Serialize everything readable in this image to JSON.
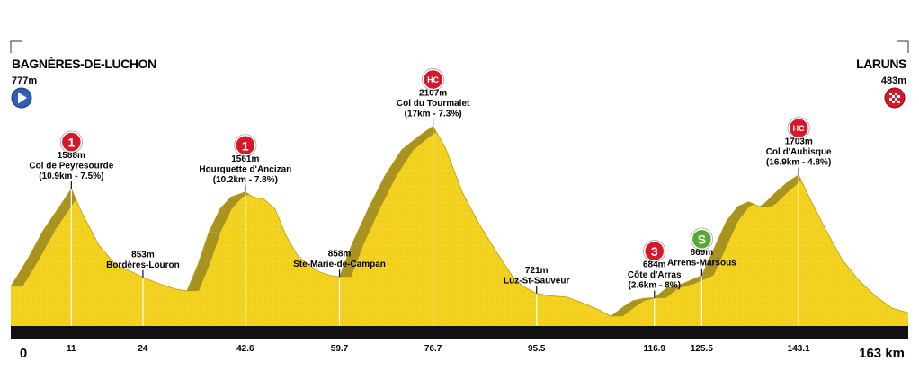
{
  "chart_data": {
    "type": "area",
    "start": {
      "name": "BAGNÈRES-DE-LUCHON",
      "altitude": "777m"
    },
    "finish": {
      "name": "LARUNS",
      "altitude": "483m"
    },
    "x_axis": {
      "ticks": [
        0,
        11,
        24,
        42.6,
        59.7,
        76.7,
        95.5,
        116.9,
        125.5,
        143.1
      ],
      "tick_labels": [
        "0",
        "11",
        "24",
        "42.6",
        "59.7",
        "76.7",
        "95.5",
        "116.9",
        "125.5",
        "143.1"
      ],
      "end_label": "163 km",
      "xlim": [
        0,
        163
      ]
    },
    "ylim": [
      450,
      2200
    ],
    "profile": {
      "km": [
        0,
        3,
        6,
        9,
        11,
        13,
        16,
        19,
        22,
        24,
        27,
        30,
        32,
        34,
        36,
        38,
        40,
        42.6,
        44,
        46,
        48,
        50,
        52,
        54,
        56,
        58,
        59.7,
        62,
        65,
        68,
        71,
        74,
        76.7,
        79,
        82,
        85,
        88,
        91,
        93,
        95.5,
        98,
        101,
        104,
        107,
        109,
        111,
        113,
        115,
        116.9,
        119,
        122,
        125.5,
        128,
        130,
        132,
        134,
        136,
        137,
        139,
        141,
        143.1,
        145,
        148,
        151,
        154,
        157,
        160,
        163
      ],
      "altitude": [
        777,
        1000,
        1250,
        1450,
        1588,
        1380,
        1120,
        960,
        900,
        853,
        800,
        755,
        740,
        960,
        1230,
        1420,
        1520,
        1561,
        1520,
        1500,
        1420,
        1200,
        1040,
        960,
        900,
        870,
        858,
        1130,
        1430,
        1700,
        1910,
        2020,
        2107,
        1920,
        1560,
        1300,
        1080,
        870,
        780,
        721,
        700,
        690,
        640,
        580,
        530,
        600,
        660,
        680,
        684,
        760,
        800,
        869,
        1120,
        1320,
        1440,
        1480,
        1440,
        1470,
        1560,
        1640,
        1703,
        1520,
        1250,
        1000,
        830,
        700,
        600,
        560
      ]
    },
    "points": [
      {
        "km": 11,
        "altitude": 1588,
        "lines": [
          "1588m",
          "Col de Peyresourde",
          "(10.9km - 7.5%)"
        ],
        "badge": "1",
        "badge_color": "#d7182a"
      },
      {
        "km": 24,
        "altitude": 853,
        "lines": [
          "853m",
          "Bordères-Louron"
        ]
      },
      {
        "km": 42.6,
        "altitude": 1561,
        "lines": [
          "1561m",
          "Hourquette d'Ancizan",
          "(10.2km - 7.8%)"
        ],
        "badge": "1",
        "badge_color": "#d7182a"
      },
      {
        "km": 59.7,
        "altitude": 858,
        "lines": [
          "858m",
          "Ste-Marie-de-Campan"
        ]
      },
      {
        "km": 76.7,
        "altitude": 2107,
        "lines": [
          "2107m",
          "Col du Tourmalet",
          "(17km - 7.3%)"
        ],
        "badge": "HC",
        "badge_color": "#d7182a"
      },
      {
        "km": 95.5,
        "altitude": 721,
        "lines": [
          "721m",
          "Luz-St-Sauveur"
        ]
      },
      {
        "km": 116.9,
        "altitude": 684,
        "lines": [
          "684m",
          "Côte d'Arras",
          "(2.6km - 8%)"
        ],
        "badge": "3",
        "badge_color": "#d7182a"
      },
      {
        "km": 125.5,
        "altitude": 869,
        "lines": [
          "869m",
          "Arrens-Marsous"
        ],
        "badge": "S",
        "badge_color": "#5aa832"
      },
      {
        "km": 143.1,
        "altitude": 1703,
        "lines": [
          "1703m",
          "Col d'Aubisque",
          "(16.9km - 4.8%)"
        ],
        "badge": "HC",
        "badge_color": "#d7182a"
      }
    ],
    "colors": {
      "fill": "#f2d21f",
      "fill_shadow": "#a89320",
      "axis_bar": "#111111",
      "start_icon": "#2f5fb8",
      "finish_icon": "#d7182a"
    },
    "start_icon": "play-arrow-icon",
    "finish_icon": "checkered-flag-icon"
  }
}
